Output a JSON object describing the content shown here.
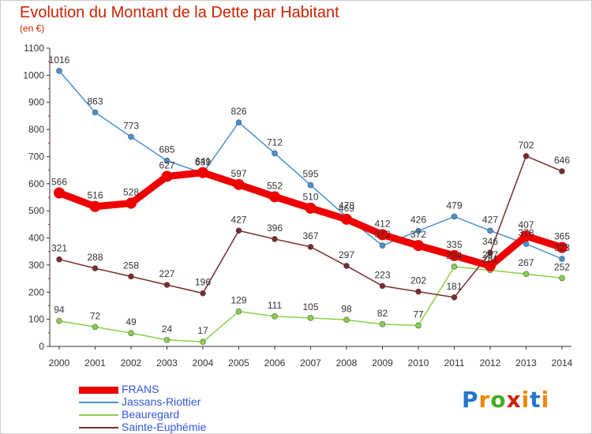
{
  "title": "Evolution du Montant de la Dette par Habitant",
  "unit_label": "(en €)",
  "logo_text": "Proxiti",
  "chart_data": {
    "type": "line",
    "title": "Evolution du Montant de la Dette par Habitant",
    "ylabel": "(en €)",
    "x": [
      "2000",
      "2001",
      "2002",
      "2003",
      "2004",
      "2005",
      "2006",
      "2007",
      "2008",
      "2009",
      "2010",
      "2011",
      "2012",
      "2013",
      "2014"
    ],
    "ylim": [
      0,
      1100
    ],
    "yticks": [
      "0",
      "100",
      "200",
      "300",
      "400",
      "500",
      "600",
      "700",
      "800",
      "900",
      "1000",
      "1100"
    ],
    "grid": false,
    "legend_position": "bottom-left",
    "series": [
      {
        "name": "FRANS",
        "color": "#ee0000",
        "values": [
          566,
          516,
          528,
          627,
          641,
          597,
          552,
          510,
          469,
          412,
          372,
          335,
          297,
          407,
          365
        ],
        "labels": [
          "566",
          "516",
          "528",
          "627",
          "641",
          "597",
          "552",
          "510",
          "469",
          "412",
          "372",
          "335",
          "297",
          "407",
          "365"
        ]
      },
      {
        "name": "Jassans-Riottier",
        "color": "#4a90d0",
        "values": [
          1016,
          863,
          773,
          685,
          639,
          826,
          712,
          595,
          478,
          372,
          426,
          479,
          427,
          378,
          323
        ],
        "labels": [
          "1016",
          "863",
          "773",
          "685",
          "639",
          "826",
          "712",
          "595",
          "478",
          "372",
          "426",
          "479",
          "427",
          "378",
          "323"
        ]
      },
      {
        "name": "Beauregard",
        "color": "#88d048",
        "values": [
          94,
          72,
          49,
          24,
          17,
          129,
          111,
          105,
          98,
          82,
          77,
          294,
          281,
          267,
          252
        ],
        "labels": [
          "94",
          "72",
          "49",
          "24",
          "17",
          "129",
          "111",
          "105",
          "98",
          "82",
          "77",
          "294",
          "281",
          "267",
          "252"
        ]
      },
      {
        "name": "Sainte-Euphémie",
        "color": "#7a2a2a",
        "values": [
          321,
          288,
          258,
          227,
          196,
          427,
          396,
          367,
          297,
          223,
          202,
          181,
          346,
          702,
          646
        ],
        "labels": [
          "321",
          "288",
          "258",
          "227",
          "196",
          "427",
          "396",
          "367",
          "297",
          "223",
          "202",
          "181",
          "346",
          "702",
          "646"
        ]
      }
    ]
  }
}
